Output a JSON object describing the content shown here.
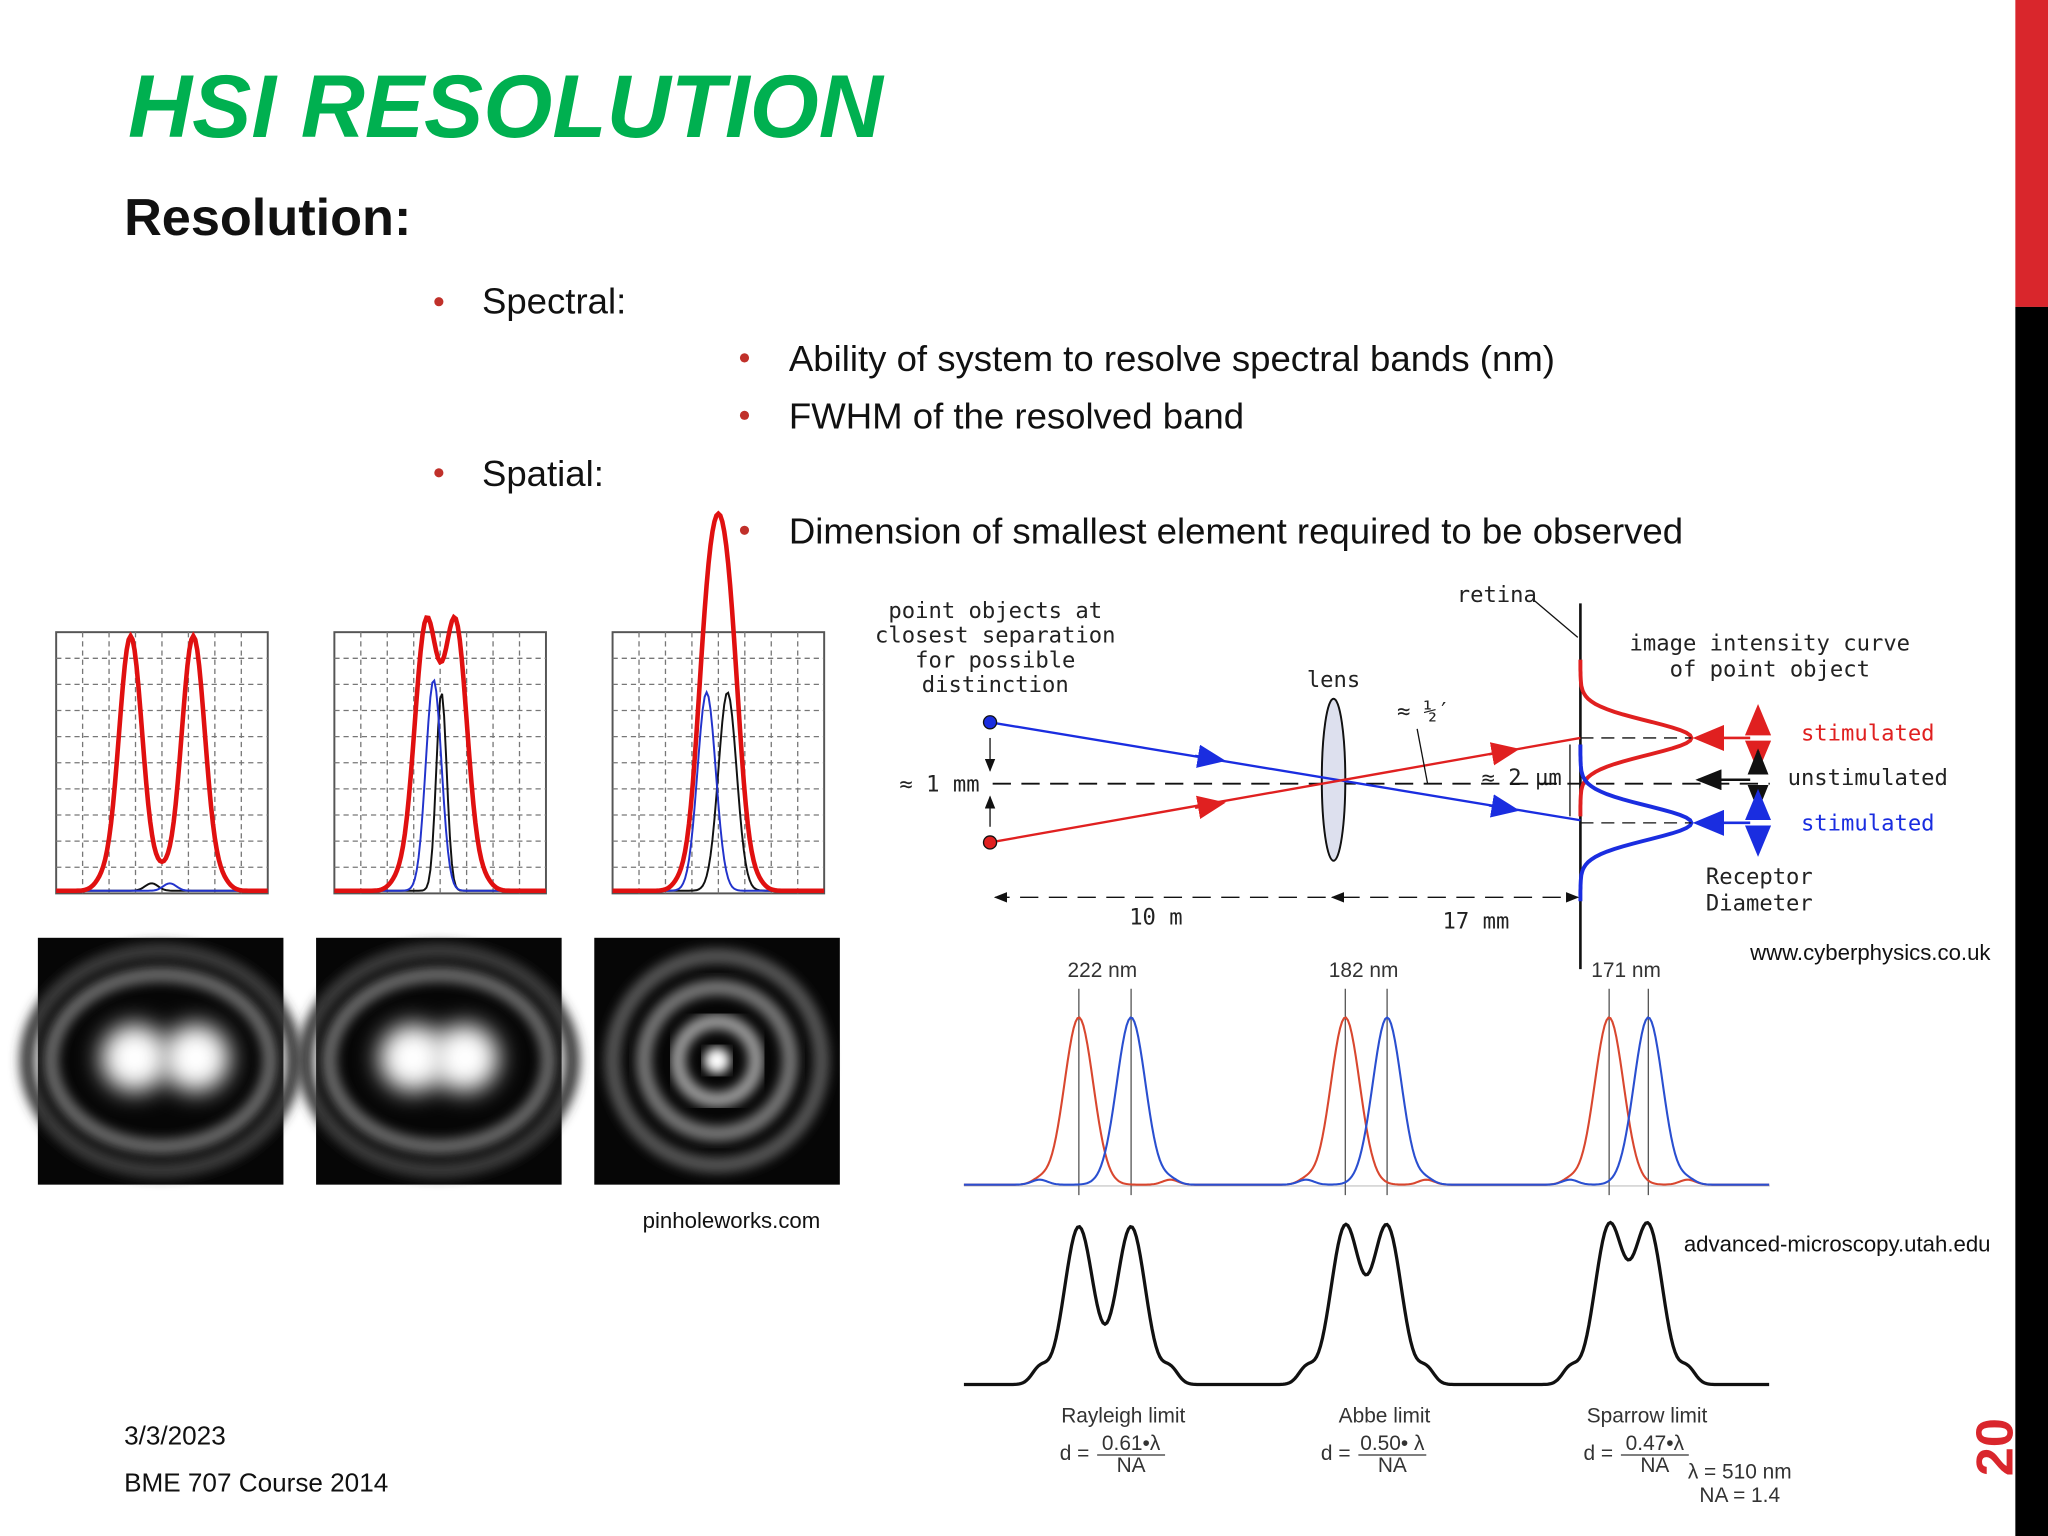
{
  "header": {
    "title": "HSI RESOLUTION",
    "subtitle": "Resolution:"
  },
  "bullets": [
    {
      "text": "Spectral:",
      "sub": [
        "Ability of system to resolve spectral bands (nm)",
        "FWHM of the resolved band"
      ]
    },
    {
      "text": "Spatial:",
      "sub": [
        "Dimension of smallest element required to be observed"
      ]
    }
  ],
  "figures": {
    "airy": {
      "credit": "pinholeworks.com"
    },
    "eye": {
      "object_label": [
        "point objects at",
        "closest separation",
        "for possible",
        "distinction"
      ],
      "retina": "retina",
      "lens": "lens",
      "angle": "≈ ½′",
      "object_gap": "≈ 1 mm",
      "image_gap": "≈ 2 µm",
      "curve_label": [
        "image intensity curve",
        "of point object"
      ],
      "states": [
        "stimulated",
        "unstimulated",
        "stimulated"
      ],
      "receptor": [
        "Receptor",
        "Diameter"
      ],
      "object_distance": "10 m",
      "image_distance": "17 mm",
      "credit": "www.cyberphysics.co.uk"
    },
    "limits": {
      "separations": [
        "222 nm",
        "182 nm",
        "171 nm"
      ],
      "criteria": [
        {
          "name": "Rayleigh limit",
          "lhs": "d =",
          "num": "0.61•λ",
          "den": "NA"
        },
        {
          "name": "Abbe limit",
          "lhs": "d =",
          "num": "0.50• λ",
          "den": "NA"
        },
        {
          "name": "Sparrow limit",
          "lhs": "d =",
          "num": "0.47•λ",
          "den": "NA"
        }
      ],
      "wavelength": "λ = 510 nm",
      "aperture": "NA = 1.4",
      "credit": "advanced-microscopy.utah.edu"
    }
  },
  "footer": {
    "date": "3/3/2023",
    "course": "BME 707 Course 2014",
    "page": "20"
  }
}
